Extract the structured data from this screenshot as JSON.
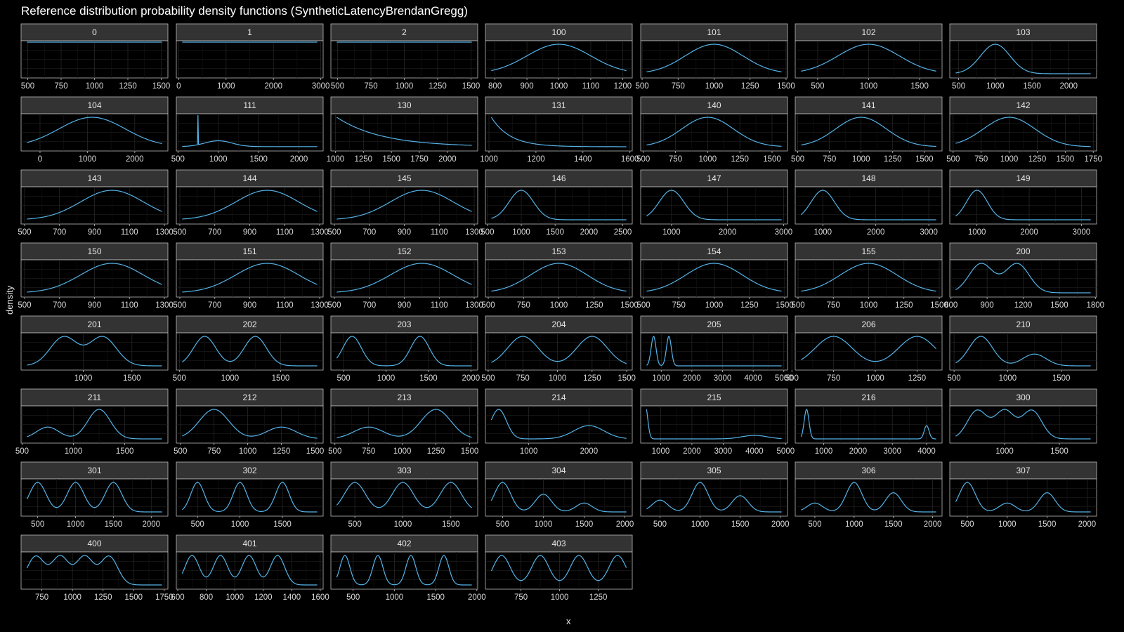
{
  "chart_data": {
    "type": "line",
    "title": "Reference distribution probability density functions (SyntheticLatencyBrendanGregg)",
    "xlabel": "x",
    "ylabel": "density",
    "colors": {
      "line": "#56b4e9",
      "background": "#000000",
      "panel": "#000000",
      "strip": "#333333",
      "grid": "#262626",
      "text": "#e6e6e6"
    },
    "panels": [
      {
        "id": "0",
        "xlim": [
          450,
          1550
        ],
        "ticks": [
          500,
          750,
          1000,
          1250,
          1500
        ],
        "shape": "flat",
        "params": []
      },
      {
        "id": "1",
        "xlim": [
          -50,
          3050
        ],
        "ticks": [
          0,
          1000,
          2000,
          3000
        ],
        "shape": "flat",
        "params": []
      },
      {
        "id": "2",
        "xlim": [
          450,
          1550
        ],
        "ticks": [
          500,
          750,
          1000,
          1250,
          1500
        ],
        "shape": "flat",
        "params": []
      },
      {
        "id": "100",
        "xlim": [
          770,
          1230
        ],
        "ticks": [
          800,
          900,
          1000,
          1100,
          1200
        ],
        "shape": "mix",
        "params": [
          [
            1000,
            100,
            1
          ]
        ]
      },
      {
        "id": "101",
        "xlim": [
          490,
          1510
        ],
        "ticks": [
          500,
          750,
          1000,
          1250,
          1500
        ],
        "shape": "mix",
        "params": [
          [
            1000,
            200,
            1
          ]
        ]
      },
      {
        "id": "102",
        "xlim": [
          280,
          1720
        ],
        "ticks": [
          500,
          1000,
          1500
        ],
        "shape": "mix",
        "params": [
          [
            1000,
            300,
            1
          ]
        ]
      },
      {
        "id": "103",
        "xlim": [
          380,
          2380
        ],
        "ticks": [
          500,
          1000,
          1500,
          2000
        ],
        "shape": "mix",
        "params": [
          [
            1000,
            200,
            1
          ]
        ]
      },
      {
        "id": "104",
        "xlim": [
          -400,
          2700
        ],
        "ticks": [
          0,
          1000,
          2000
        ],
        "shape": "mix",
        "params": [
          [
            1100,
            700,
            1
          ]
        ]
      },
      {
        "id": "111",
        "xlim": [
          480,
          2300
        ],
        "ticks": [
          500,
          1000,
          1500,
          2000
        ],
        "shape": "spike111",
        "params": []
      },
      {
        "id": "130",
        "xlim": [
          960,
          2270
        ],
        "ticks": [
          1000,
          1250,
          1500,
          1750,
          2000
        ],
        "shape": "decay",
        "params": [
          1000,
          400
        ]
      },
      {
        "id": "131",
        "xlim": [
          985,
          1610
        ],
        "ticks": [
          1000,
          1200,
          1400,
          1600
        ],
        "shape": "decay",
        "params": [
          1000,
          80
        ]
      },
      {
        "id": "140",
        "xlim": [
          480,
          1620
        ],
        "ticks": [
          500,
          750,
          1000,
          1250,
          1500
        ],
        "shape": "mix",
        "params": [
          [
            1000,
            200,
            1
          ]
        ]
      },
      {
        "id": "141",
        "xlim": [
          480,
          1640
        ],
        "ticks": [
          500,
          750,
          1000,
          1250,
          1500
        ],
        "shape": "mix",
        "params": [
          [
            1000,
            200,
            1
          ]
        ]
      },
      {
        "id": "142",
        "xlim": [
          470,
          1780
        ],
        "ticks": [
          500,
          750,
          1000,
          1250,
          1500,
          1750
        ],
        "shape": "mix",
        "params": [
          [
            1000,
            230,
            1
          ]
        ]
      },
      {
        "id": "143",
        "xlim": [
          480,
          1320
        ],
        "ticks": [
          500,
          700,
          900,
          1100,
          1300
        ],
        "shape": "mix",
        "params": [
          [
            1000,
            180,
            1
          ]
        ]
      },
      {
        "id": "144",
        "xlim": [
          480,
          1320
        ],
        "ticks": [
          500,
          700,
          900,
          1100,
          1300
        ],
        "shape": "mix",
        "params": [
          [
            1000,
            180,
            1
          ]
        ]
      },
      {
        "id": "145",
        "xlim": [
          480,
          1320
        ],
        "ticks": [
          500,
          700,
          900,
          1100,
          1300
        ],
        "shape": "mix",
        "params": [
          [
            1000,
            180,
            1
          ]
        ]
      },
      {
        "id": "146",
        "xlim": [
          470,
          2640
        ],
        "ticks": [
          500,
          1000,
          1500,
          2000,
          2500
        ],
        "shape": "mix",
        "params": [
          [
            1000,
            180,
            1
          ]
        ]
      },
      {
        "id": "147",
        "xlim": [
          450,
          3070
        ],
        "ticks": [
          1000,
          2000,
          3000
        ],
        "shape": "mix",
        "params": [
          [
            1000,
            220,
            1
          ]
        ]
      },
      {
        "id": "148",
        "xlim": [
          480,
          3250
        ],
        "ticks": [
          1000,
          2000,
          3000
        ],
        "shape": "mix",
        "params": [
          [
            1000,
            220,
            1
          ]
        ]
      },
      {
        "id": "149",
        "xlim": [
          480,
          3290
        ],
        "ticks": [
          1000,
          2000,
          3000
        ],
        "shape": "mix",
        "params": [
          [
            1000,
            200,
            1
          ]
        ]
      },
      {
        "id": "150",
        "xlim": [
          480,
          1320
        ],
        "ticks": [
          500,
          700,
          900,
          1100,
          1300
        ],
        "shape": "mix",
        "params": [
          [
            1000,
            180,
            1
          ]
        ]
      },
      {
        "id": "151",
        "xlim": [
          480,
          1320
        ],
        "ticks": [
          500,
          700,
          900,
          1100,
          1300
        ],
        "shape": "mix",
        "params": [
          [
            1000,
            180,
            1
          ]
        ]
      },
      {
        "id": "152",
        "xlim": [
          480,
          1320
        ],
        "ticks": [
          500,
          700,
          900,
          1100,
          1300
        ],
        "shape": "mix",
        "params": [
          [
            1000,
            180,
            1
          ]
        ]
      },
      {
        "id": "153",
        "xlim": [
          480,
          1520
        ],
        "ticks": [
          500,
          750,
          1000,
          1250,
          1500
        ],
        "shape": "mix",
        "params": [
          [
            1000,
            200,
            1
          ]
        ]
      },
      {
        "id": "154",
        "xlim": [
          480,
          1520
        ],
        "ticks": [
          500,
          750,
          1000,
          1250,
          1500
        ],
        "shape": "mix",
        "params": [
          [
            1000,
            200,
            1
          ]
        ]
      },
      {
        "id": "155",
        "xlim": [
          480,
          1520
        ],
        "ticks": [
          500,
          750,
          1000,
          1250,
          1500
        ],
        "shape": "mix",
        "params": [
          [
            1000,
            200,
            1
          ]
        ]
      },
      {
        "id": "200",
        "xlim": [
          590,
          1810
        ],
        "ticks": [
          600,
          900,
          1200,
          1500,
          1800
        ],
        "shape": "mix",
        "params": [
          [
            850,
            100,
            1
          ],
          [
            1150,
            100,
            1
          ]
        ]
      },
      {
        "id": "201",
        "xlim": [
          360,
          1870
        ],
        "ticks": [
          1000,
          1500
        ],
        "shape": "mix",
        "params": [
          [
            800,
            140,
            1
          ],
          [
            1200,
            140,
            1
          ]
        ]
      },
      {
        "id": "202",
        "xlim": [
          470,
          1920
        ],
        "ticks": [
          500,
          1000,
          1500
        ],
        "shape": "mix",
        "params": [
          [
            750,
            110,
            1
          ],
          [
            1250,
            110,
            1
          ]
        ]
      },
      {
        "id": "203",
        "xlim": [
          350,
          2080
        ],
        "ticks": [
          500,
          1000,
          1500,
          2000
        ],
        "shape": "mix",
        "params": [
          [
            600,
            110,
            1
          ],
          [
            1400,
            110,
            1
          ]
        ]
      },
      {
        "id": "204",
        "xlim": [
          480,
          1540
        ],
        "ticks": [
          500,
          750,
          1000,
          1250,
          1500
        ],
        "shape": "mix",
        "params": [
          [
            750,
            110,
            1
          ],
          [
            1250,
            110,
            1
          ]
        ]
      },
      {
        "id": "205",
        "xlim": [
          330,
          5120
        ],
        "ticks": [
          1000,
          2000,
          3000,
          4000,
          5000
        ],
        "shape": "mix",
        "params": [
          [
            750,
            80,
            1
          ],
          [
            1250,
            80,
            1
          ]
        ]
      },
      {
        "id": "206",
        "xlim": [
          520,
          1400
        ],
        "ticks": [
          500,
          750,
          1000,
          1250
        ],
        "shape": "mix",
        "params": [
          [
            750,
            110,
            1
          ],
          [
            1250,
            110,
            1
          ]
        ]
      },
      {
        "id": "210",
        "xlim": [
          460,
          1830
        ],
        "ticks": [
          500,
          1000,
          1500
        ],
        "shape": "mix",
        "params": [
          [
            750,
            110,
            1
          ],
          [
            1250,
            110,
            0.4
          ]
        ]
      },
      {
        "id": "211",
        "xlim": [
          490,
          1920
        ],
        "ticks": [
          500,
          1000,
          1500
        ],
        "shape": "mix",
        "params": [
          [
            750,
            110,
            0.4
          ],
          [
            1250,
            110,
            1
          ]
        ]
      },
      {
        "id": "212",
        "xlim": [
          470,
          1560
        ],
        "ticks": [
          500,
          750,
          1000,
          1250,
          1500
        ],
        "shape": "mix",
        "params": [
          [
            750,
            110,
            1
          ],
          [
            1250,
            110,
            0.4
          ]
        ]
      },
      {
        "id": "213",
        "xlim": [
          470,
          1560
        ],
        "ticks": [
          500,
          750,
          1000,
          1250,
          1500
        ],
        "shape": "mix",
        "params": [
          [
            750,
            110,
            0.4
          ],
          [
            1250,
            110,
            1
          ]
        ]
      },
      {
        "id": "214",
        "xlim": [
          280,
          2720
        ],
        "ticks": [
          1000,
          2000
        ],
        "shape": "mix",
        "params": [
          [
            500,
            130,
            1
          ],
          [
            2000,
            250,
            0.45
          ]
        ]
      },
      {
        "id": "215",
        "xlim": [
          360,
          5060
        ],
        "ticks": [
          1000,
          2000,
          3000,
          4000,
          5000
        ],
        "shape": "mix",
        "params": [
          [
            500,
            80,
            1
          ],
          [
            4000,
            400,
            0.1
          ]
        ]
      },
      {
        "id": "216",
        "xlim": [
          170,
          4450
        ],
        "ticks": [
          1000,
          2000,
          3000,
          4000
        ],
        "shape": "mix",
        "params": [
          [
            500,
            70,
            1
          ],
          [
            4000,
            70,
            0.45
          ]
        ]
      },
      {
        "id": "300",
        "xlim": [
          500,
          1840
        ],
        "ticks": [
          1000,
          1500
        ],
        "shape": "mix",
        "params": [
          [
            750,
            90,
            1
          ],
          [
            1000,
            90,
            1
          ],
          [
            1250,
            90,
            1
          ]
        ]
      },
      {
        "id": "301",
        "xlim": [
          280,
          2220
        ],
        "ticks": [
          500,
          1000,
          1500,
          2000
        ],
        "shape": "mix",
        "params": [
          [
            500,
            110,
            1
          ],
          [
            1000,
            110,
            1
          ],
          [
            1500,
            110,
            1
          ]
        ]
      },
      {
        "id": "302",
        "xlim": [
          250,
          1980
        ],
        "ticks": [
          500,
          1000,
          1500
        ],
        "shape": "mix",
        "params": [
          [
            500,
            80,
            1
          ],
          [
            1000,
            80,
            1
          ],
          [
            1500,
            80,
            1
          ]
        ]
      },
      {
        "id": "303",
        "xlim": [
          250,
          1780
        ],
        "ticks": [
          500,
          1000,
          1500
        ],
        "shape": "mix",
        "params": [
          [
            500,
            110,
            1
          ],
          [
            1000,
            110,
            1
          ],
          [
            1500,
            110,
            1
          ]
        ]
      },
      {
        "id": "304",
        "xlim": [
          290,
          2090
        ],
        "ticks": [
          500,
          1000,
          1500,
          2000
        ],
        "shape": "mix",
        "params": [
          [
            500,
            100,
            1
          ],
          [
            1000,
            100,
            0.6
          ],
          [
            1500,
            100,
            0.3
          ]
        ]
      },
      {
        "id": "305",
        "xlim": [
          260,
          2090
        ],
        "ticks": [
          500,
          1000,
          1500,
          2000
        ],
        "shape": "mix",
        "params": [
          [
            500,
            100,
            0.4
          ],
          [
            1000,
            100,
            1
          ],
          [
            1500,
            100,
            0.55
          ]
        ]
      },
      {
        "id": "306",
        "xlim": [
          250,
          2120
        ],
        "ticks": [
          500,
          1000,
          1500,
          2000
        ],
        "shape": "mix",
        "params": [
          [
            500,
            100,
            0.3
          ],
          [
            1000,
            100,
            1
          ],
          [
            1500,
            100,
            0.65
          ]
        ]
      },
      {
        "id": "307",
        "xlim": [
          280,
          2120
        ],
        "ticks": [
          500,
          1000,
          1500,
          2000
        ],
        "shape": "mix",
        "params": [
          [
            500,
            100,
            1
          ],
          [
            1000,
            100,
            0.3
          ],
          [
            1500,
            100,
            0.65
          ]
        ]
      },
      {
        "id": "400",
        "xlim": [
          580,
          1780
        ],
        "ticks": [
          750,
          1000,
          1250,
          1500,
          1750
        ],
        "shape": "mix",
        "params": [
          [
            700,
            70,
            1
          ],
          [
            900,
            70,
            1
          ],
          [
            1100,
            70,
            1
          ],
          [
            1300,
            70,
            1
          ]
        ]
      },
      {
        "id": "401",
        "xlim": [
          590,
          1620
        ],
        "ticks": [
          600,
          800,
          1000,
          1200,
          1400,
          1600
        ],
        "shape": "mix",
        "params": [
          [
            700,
            50,
            1
          ],
          [
            900,
            50,
            1
          ],
          [
            1100,
            50,
            1
          ],
          [
            1300,
            50,
            1
          ]
        ]
      },
      {
        "id": "402",
        "xlim": [
          230,
          2010
        ],
        "ticks": [
          500,
          1000,
          1500,
          2000
        ],
        "shape": "mix",
        "params": [
          [
            400,
            60,
            1
          ],
          [
            800,
            60,
            1
          ],
          [
            1200,
            60,
            1
          ],
          [
            1600,
            60,
            1
          ]
        ]
      },
      {
        "id": "403",
        "xlim": [
          520,
          1470
        ],
        "ticks": [
          750,
          1000,
          1250
        ],
        "shape": "mix",
        "params": [
          [
            625,
            55,
            1
          ],
          [
            875,
            55,
            1
          ],
          [
            1125,
            55,
            1
          ],
          [
            1375,
            55,
            1
          ]
        ]
      }
    ]
  }
}
